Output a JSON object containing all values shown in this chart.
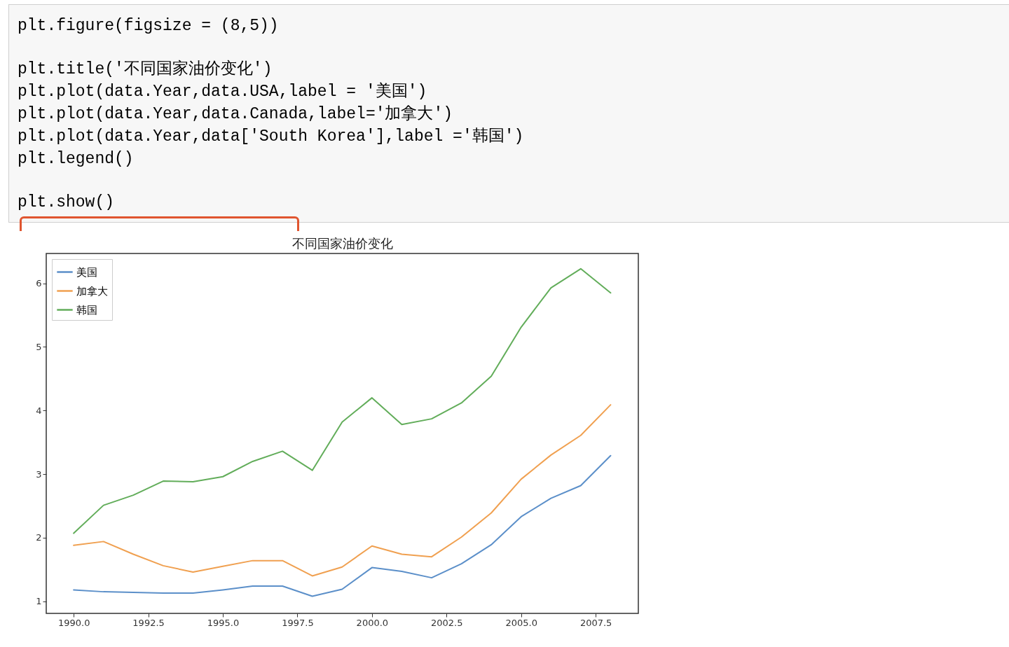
{
  "chart_data": {
    "type": "line",
    "title": "不同国家油价变化",
    "annotations": [
      "plt.figure(figsize = (8,5))",
      "plt.title('不同国家油价变化')",
      "plt.plot(data.Year,data.USA,label = '美国')",
      "plt.plot(data.Year,data.Canada,label='加拿大')",
      "plt.plot(data.Year,data['South Korea'],label ='韩国')",
      "plt.legend()",
      "plt.show()"
    ],
    "x": [
      1990,
      1991,
      1992,
      1993,
      1994,
      1995,
      1996,
      1997,
      1998,
      1999,
      2000,
      2001,
      2002,
      2003,
      2004,
      2005,
      2006,
      2007,
      2008
    ],
    "series": [
      {
        "name": "美国",
        "color": "#5b8fc9",
        "values": [
          1.18,
          1.15,
          1.14,
          1.13,
          1.13,
          1.18,
          1.24,
          1.24,
          1.08,
          1.19,
          1.53,
          1.47,
          1.37,
          1.59,
          1.89,
          2.33,
          2.62,
          2.82,
          3.29
        ]
      },
      {
        "name": "加拿大",
        "color": "#f0a050",
        "values": [
          1.88,
          1.94,
          1.74,
          1.56,
          1.46,
          1.55,
          1.64,
          1.64,
          1.4,
          1.54,
          1.87,
          1.74,
          1.7,
          2.01,
          2.39,
          2.92,
          3.3,
          3.61,
          4.09
        ]
      },
      {
        "name": "韩国",
        "color": "#62ad5a",
        "values": [
          2.07,
          2.51,
          2.67,
          2.89,
          2.88,
          2.96,
          3.2,
          3.36,
          3.06,
          3.82,
          4.2,
          3.78,
          3.87,
          4.12,
          4.54,
          5.31,
          5.93,
          6.23,
          5.85
        ]
      }
    ],
    "xlim": [
      1989.08,
      2008.93
    ],
    "ylim": [
      0.81,
      6.47
    ],
    "xticks": [
      {
        "value": 1990,
        "label": "1990.0"
      },
      {
        "value": 1992.5,
        "label": "1992.5"
      },
      {
        "value": 1995,
        "label": "1995.0"
      },
      {
        "value": 1997.5,
        "label": "1997.5"
      },
      {
        "value": 2000,
        "label": "2000.0"
      },
      {
        "value": 2002.5,
        "label": "2002.5"
      },
      {
        "value": 2005,
        "label": "2005.0"
      },
      {
        "value": 2007.5,
        "label": "2007.5"
      }
    ],
    "yticks": [
      1,
      2,
      3,
      4,
      5,
      6
    ],
    "legend": "top left",
    "grid": false,
    "line_style": "solid",
    "marker": "none"
  }
}
